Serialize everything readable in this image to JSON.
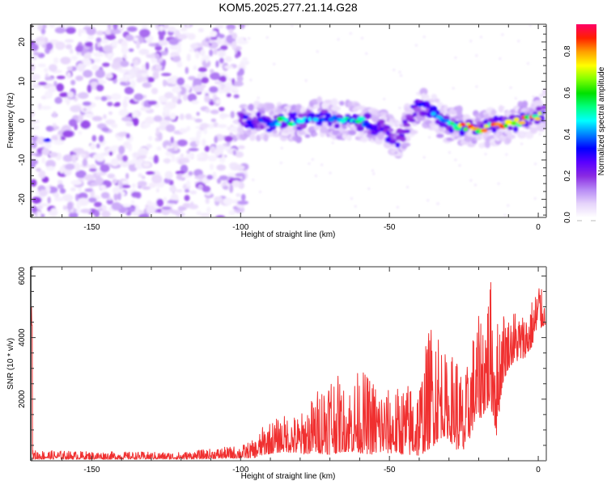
{
  "chart_data": [
    {
      "type": "heatmap",
      "title": "KOM5.2025.277.21.14.G28",
      "xlabel": "Height of straight line (km)",
      "ylabel": "Frequency (Hz)",
      "xlim": [
        -170.5,
        2.7
      ],
      "ylim": [
        -24.6,
        24.5
      ],
      "xticks": [
        -150,
        -100,
        -50,
        0
      ],
      "xtick_labels": [
        "-150",
        "-100",
        "-50",
        "0"
      ],
      "yticks": [
        -20,
        -10,
        0,
        10,
        20
      ],
      "ytick_labels": [
        "-20",
        "-10",
        "0",
        "10",
        "20"
      ],
      "grid": false,
      "colorbar": {
        "label": "Normalized spectral amplitude",
        "range": [
          0.0,
          0.93
        ],
        "ticks": [
          0.0,
          0.2,
          0.4,
          0.6,
          0.8
        ],
        "tick_labels": [
          "0.0",
          "0.2",
          "0.4",
          "0.6",
          "0.8"
        ],
        "colormap": [
          "#ffffff",
          "#e6d4fb",
          "#b78af5",
          "#8a2be2",
          "#5a00ff",
          "#0000ff",
          "#0080ff",
          "#00ffff",
          "#00ff80",
          "#00e000",
          "#80ff00",
          "#ffff00",
          "#ffa000",
          "#ff2000",
          "#ff0066"
        ]
      },
      "ridge": {
        "description": "Main frequency ridge from ~-100 km to 0 km",
        "x": [
          -100,
          -95,
          -90,
          -85,
          -80,
          -75,
          -70,
          -65,
          -60,
          -55,
          -50,
          -47,
          -44,
          -40,
          -37,
          -34,
          -30,
          -25,
          -20,
          -15,
          -10,
          -5,
          0,
          2
        ],
        "y": [
          0,
          0,
          -0.5,
          0,
          -0.5,
          1,
          0.5,
          0,
          0,
          -1.5,
          -3,
          -5,
          -1,
          4,
          3,
          1,
          -1,
          -1.5,
          -2,
          -1.5,
          -1,
          0,
          1,
          3
        ],
        "peak_amplitude": [
          0.25,
          0.35,
          0.55,
          0.6,
          0.5,
          0.45,
          0.4,
          0.5,
          0.65,
          0.3,
          0.25,
          0.2,
          0.25,
          0.3,
          0.45,
          0.4,
          0.5,
          0.85,
          0.9,
          0.85,
          0.8,
          0.85,
          0.9,
          0.4
        ]
      },
      "noise_region": {
        "x_range": [
          -170.5,
          -100
        ],
        "amplitude_max": 0.15
      }
    },
    {
      "type": "line",
      "xlabel": "Height of straight line (km)",
      "ylabel": "SNR (10 * v/v)",
      "xlim": [
        -170.5,
        2.7
      ],
      "ylim": [
        0,
        6300
      ],
      "xticks": [
        -150,
        -100,
        -50,
        0
      ],
      "xtick_labels": [
        "-150",
        "-100",
        "-50",
        "0"
      ],
      "yticks": [
        2000,
        4000,
        6000
      ],
      "ytick_labels": [
        "2000",
        "4000",
        "6000"
      ],
      "grid": false,
      "series": [
        {
          "name": "SNR",
          "color": "#f03030",
          "envelope_x": [
            -170,
            -150,
            -120,
            -100,
            -95,
            -92,
            -85,
            -80,
            -75,
            -70,
            -65,
            -60,
            -55,
            -50,
            -45,
            -40,
            -35,
            -32,
            -30,
            -28,
            -25,
            -22,
            -20,
            -16,
            -14,
            -12,
            -10,
            -8,
            -5,
            -3,
            -1,
            0,
            1,
            2
          ],
          "envelope_min": [
            50,
            50,
            50,
            80,
            100,
            200,
            300,
            200,
            250,
            200,
            300,
            250,
            200,
            250,
            200,
            150,
            500,
            800,
            700,
            400,
            200,
            1000,
            1300,
            1800,
            800,
            2500,
            3000,
            3200,
            3300,
            3500,
            4000,
            4200,
            4300,
            4400
          ],
          "envelope_max": [
            350,
            300,
            280,
            500,
            700,
            1200,
            1500,
            1500,
            2200,
            3200,
            2400,
            3000,
            2700,
            2300,
            2500,
            2700,
            5200,
            3800,
            3000,
            4000,
            2500,
            4200,
            4700,
            6000,
            4600,
            5100,
            4700,
            5000,
            4800,
            5100,
            5500,
            6300,
            5600,
            5200
          ]
        }
      ]
    }
  ]
}
